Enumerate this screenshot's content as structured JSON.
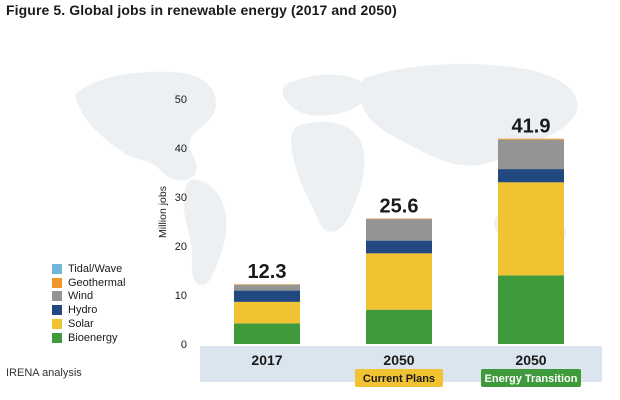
{
  "figure": {
    "title": "Figure 5. Global jobs in renewable energy (2017 and 2050)",
    "source": "IRENA analysis"
  },
  "legend": [
    {
      "label": "Tidal/Wave",
      "color": "#6fb7dd"
    },
    {
      "label": "Geothermal",
      "color": "#f0962a"
    },
    {
      "label": "Wind",
      "color": "#949494"
    },
    {
      "label": "Hydro",
      "color": "#21497f"
    },
    {
      "label": "Solar",
      "color": "#f1c232"
    },
    {
      "label": "Bioenergy",
      "color": "#3e9a3a"
    }
  ],
  "scenarios": [
    {
      "label": "Current Plans",
      "color": "#f1c232",
      "text_color": "#1a1a1a"
    },
    {
      "label": "Energy Transition",
      "color": "#3e9a3a",
      "text_color": "#ffffff"
    }
  ],
  "chart_data": {
    "type": "bar",
    "stacked": true,
    "categories": [
      "2017",
      "2050",
      "2050"
    ],
    "ylabel": "Million jobs",
    "ylim": [
      0,
      50
    ],
    "yticks": [
      0,
      10,
      20,
      30,
      40,
      50
    ],
    "grid": false,
    "series": [
      {
        "name": "Bioenergy",
        "values": [
          4.2,
          7.0,
          14.0
        ],
        "color": "#3e9a3a"
      },
      {
        "name": "Solar",
        "values": [
          4.4,
          11.5,
          19.0
        ],
        "color": "#f1c232"
      },
      {
        "name": "Hydro",
        "values": [
          2.3,
          2.6,
          2.7
        ],
        "color": "#21497f"
      },
      {
        "name": "Wind",
        "values": [
          1.2,
          4.4,
          6.0
        ],
        "color": "#949494"
      },
      {
        "name": "Geothermal",
        "values": [
          0.1,
          0.1,
          0.2
        ],
        "color": "#f0962a"
      },
      {
        "name": "Tidal/Wave",
        "values": [
          0.0,
          0.0,
          0.0
        ],
        "color": "#6fb7dd"
      }
    ],
    "totals": [
      "12.3",
      "25.6",
      "41.9"
    ],
    "legend_position": "left"
  }
}
